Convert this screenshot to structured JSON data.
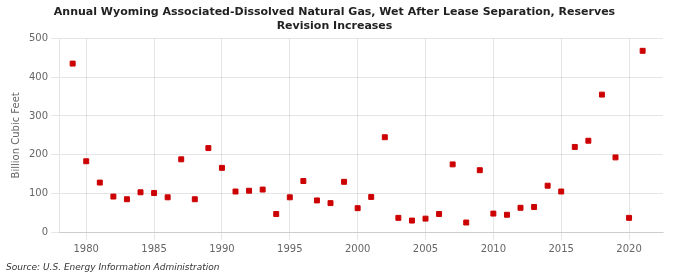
{
  "chart_data": {
    "type": "scatter",
    "title": "Annual Wyoming Associated-Dissolved Natural Gas, Wet After Lease Separation, Reserves\nRevision Increases",
    "ylabel": "Billion Cubic Feet",
    "annotations": [
      "Source: U.S. Energy Information Administration"
    ],
    "x": [
      1979,
      1980,
      1981,
      1982,
      1983,
      1984,
      1985,
      1986,
      1987,
      1988,
      1989,
      1990,
      1991,
      1992,
      1993,
      1994,
      1995,
      1996,
      1997,
      1998,
      1999,
      2000,
      2001,
      2002,
      2003,
      2004,
      2005,
      2006,
      2007,
      2008,
      2009,
      2010,
      2011,
      2012,
      2013,
      2014,
      2015,
      2016,
      2017,
      2018,
      2019,
      2020,
      2021
    ],
    "values": [
      435,
      183,
      128,
      92,
      85,
      103,
      101,
      90,
      188,
      85,
      217,
      166,
      105,
      107,
      110,
      47,
      90,
      132,
      82,
      75,
      130,
      62,
      91,
      245,
      37,
      30,
      35,
      47,
      175,
      25,
      160,
      48,
      45,
      63,
      65,
      120,
      105,
      220,
      236,
      355,
      193,
      37,
      468
    ],
    "color": "#cc0000",
    "marker": "square",
    "xlim": [
      1978,
      2022.5
    ],
    "xticks": [
      1980,
      1985,
      1990,
      1995,
      2000,
      2005,
      2010,
      2015,
      2020
    ],
    "ylim": [
      0,
      500
    ],
    "yticks": [
      0,
      100,
      200,
      300,
      400,
      500
    ],
    "grid": true
  }
}
